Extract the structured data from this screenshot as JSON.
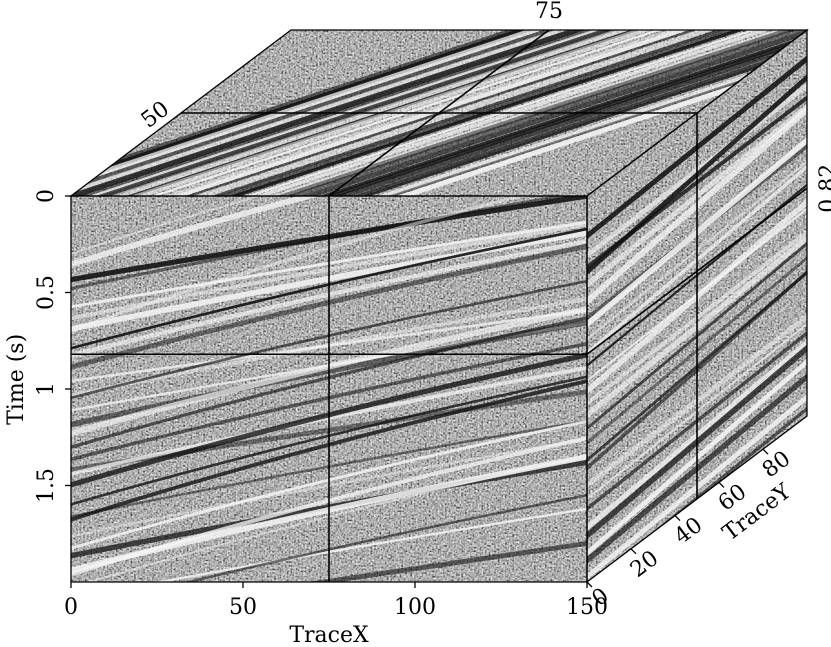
{
  "chart_data": {
    "type": "cube",
    "x_label": "TraceX",
    "y_label": "Time (s)",
    "z_label": "TraceY",
    "xlim": [
      0,
      150
    ],
    "xticks": [
      0,
      50,
      100,
      150
    ],
    "ylim": [
      0,
      2
    ],
    "yticks": [
      0,
      0.5,
      1,
      1.5
    ],
    "zlim": [
      0,
      100
    ],
    "zticks": [
      0,
      20,
      40,
      60,
      80
    ],
    "slices": {
      "x": 75,
      "y": 0.82,
      "z": 50
    }
  }
}
